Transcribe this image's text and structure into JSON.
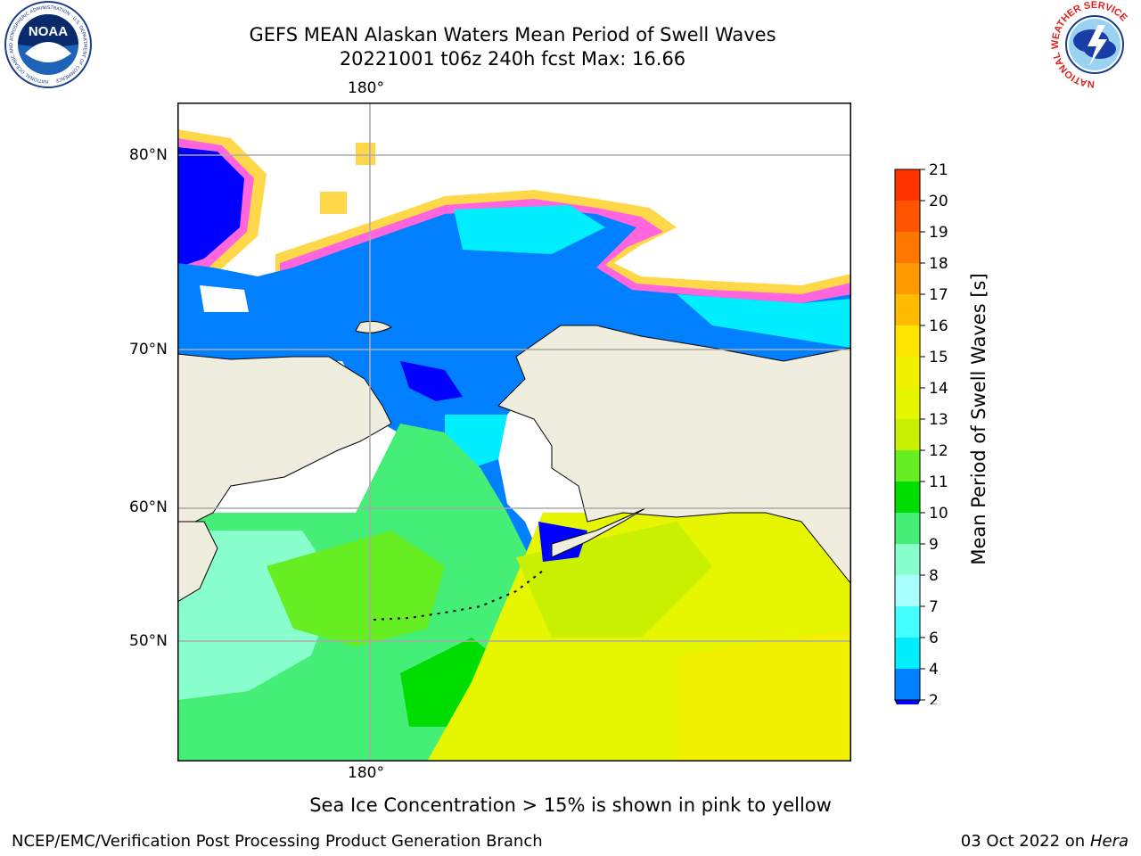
{
  "title": {
    "line1": "GEFS MEAN Alaskan Waters Mean Period of Swell Waves",
    "line2": "20221001 t06z 240h fcst   Max: 16.66"
  },
  "map": {
    "lon_labels": [
      "180°",
      "180°"
    ],
    "lat_labels": [
      "80°N",
      "70°N",
      "60°N",
      "50°N"
    ],
    "colors": {
      "land": "#efedde",
      "ice_free_open": "#ffffff",
      "band_2_4": "#0080ff",
      "band_below_2": "#0000ff"
    }
  },
  "colorbar": {
    "label": "Mean Period of Swell Waves [s]",
    "ticks": [
      "21",
      "20",
      "19",
      "18",
      "17",
      "16",
      "15",
      "14",
      "13",
      "12",
      "11",
      "10",
      "9",
      "8",
      "7",
      "6",
      "4",
      "2"
    ],
    "colors": [
      "#ff0000",
      "#ff3300",
      "#ff5500",
      "#ff7700",
      "#ff9900",
      "#ffbb00",
      "#ffe600",
      "#f2f200",
      "#e6f500",
      "#c8f000",
      "#66ee22",
      "#00dd00",
      "#44ee77",
      "#88ffcc",
      "#aaffff",
      "#44ffff",
      "#00eeff",
      "#0080ff",
      "#0000ff"
    ],
    "extend_color": "#0000ff"
  },
  "caption": "Sea Ice Concentration > 15% is shown in pink to yellow",
  "footer": {
    "left": "NCEP/EMC/Verification Post Processing Product Generation Branch",
    "right_prefix": "03 Oct 2022 on ",
    "right_host": "Hera"
  },
  "logos": {
    "noaa_text": "NOAA",
    "noaa_ring": "NATIONAL OCEANIC AND ATMOSPHERIC ADMINISTRATION · U.S. DEPARTMENT OF COMMERCE",
    "nws_ring": "NATIONAL WEATHER SERVICE"
  }
}
